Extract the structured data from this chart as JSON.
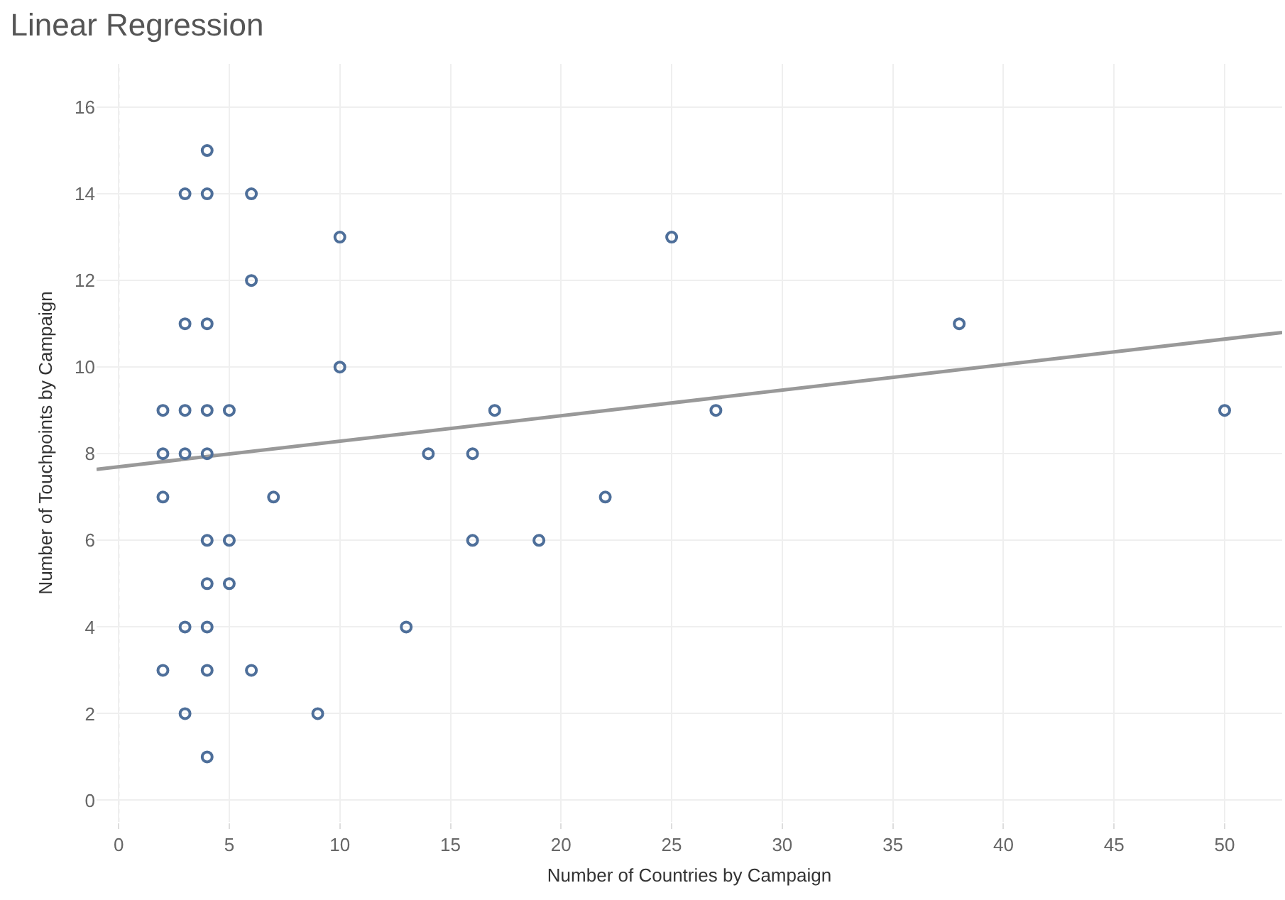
{
  "chart_data": {
    "type": "scatter",
    "title": "Linear Regression",
    "xlabel": "Number of Countries by Campaign",
    "ylabel": "Number of Touchpoints by Campaign",
    "xlim": [
      -1,
      52.6
    ],
    "ylim": [
      -0.5,
      17
    ],
    "xticks": [
      0,
      5,
      10,
      15,
      20,
      25,
      30,
      35,
      40,
      45,
      50
    ],
    "yticks": [
      0,
      2,
      4,
      6,
      8,
      10,
      12,
      14,
      16
    ],
    "grid": true,
    "legend": false,
    "ref_lines": [
      {
        "axis": "x",
        "value": 0,
        "line_style": "dotted",
        "color": "#cccccc"
      }
    ],
    "series": [
      {
        "marker": "circle",
        "color": "#4e6f9a",
        "x": [
          4,
          3,
          4,
          6,
          10,
          25,
          6,
          3,
          4,
          38,
          10,
          2,
          3,
          4,
          5,
          17,
          27,
          50,
          2,
          3,
          4,
          14,
          16,
          2,
          7,
          22,
          4,
          5,
          16,
          19,
          4,
          5,
          3,
          4,
          13,
          2,
          4,
          6,
          3,
          9,
          4
        ],
        "values": [
          15,
          14,
          14,
          14,
          13,
          13,
          12,
          11,
          11,
          11,
          10,
          9,
          9,
          9,
          9,
          9,
          9,
          9,
          8,
          8,
          8,
          8,
          8,
          7,
          7,
          7,
          6,
          6,
          6,
          6,
          5,
          5,
          4,
          4,
          4,
          3,
          3,
          3,
          2,
          2,
          1
        ]
      },
      {
        "type": "line",
        "color": "#999999",
        "x": [
          -1,
          52.6
        ],
        "values": [
          7.64,
          10.8
        ]
      }
    ]
  }
}
